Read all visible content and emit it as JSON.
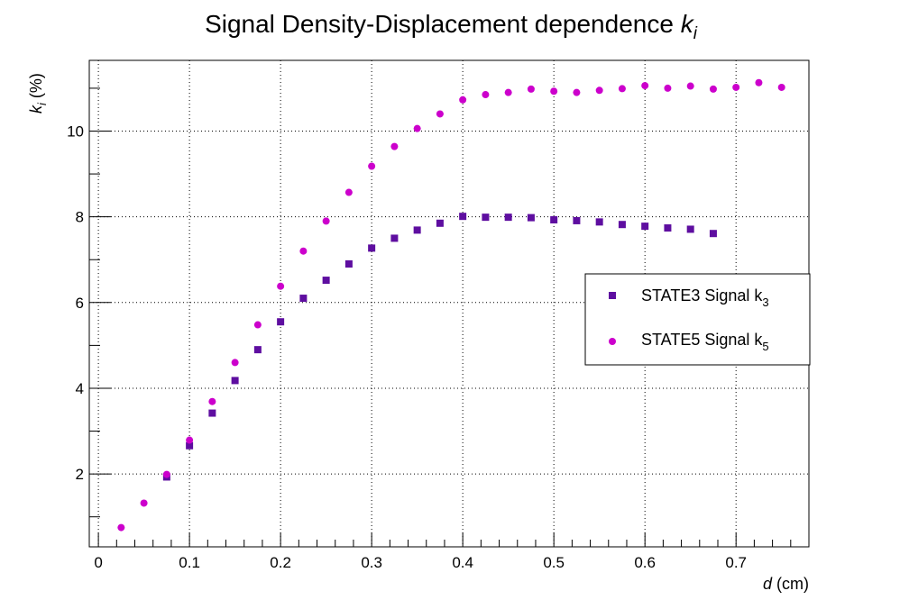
{
  "chart_data": {
    "type": "scatter",
    "title": "Signal Density-Displacement dependence",
    "title_symbol": "k",
    "title_symbol_sub": "i",
    "xlabel_symbol": "d",
    "xlabel": "(cm)",
    "ylabel_symbol": "k",
    "ylabel_symbol_sub": "i",
    "ylabel": "(%)",
    "xlim": [
      -0.01,
      0.78
    ],
    "ylim": [
      0.3,
      11.65
    ],
    "x_ticks": [
      "0",
      "0.1",
      "0.2",
      "0.3",
      "0.4",
      "0.5",
      "0.6",
      "0.7"
    ],
    "y_ticks": [
      "2",
      "4",
      "6",
      "8",
      "10"
    ],
    "grid": true,
    "legend_position": "center-right",
    "series": [
      {
        "name": "STATE3 Signal k",
        "name_sub": "3",
        "marker": "square",
        "color": "#5e0ea0",
        "x": [
          0.075,
          0.1,
          0.125,
          0.15,
          0.175,
          0.2,
          0.225,
          0.25,
          0.275,
          0.3,
          0.325,
          0.35,
          0.375,
          0.4,
          0.425,
          0.45,
          0.475,
          0.5,
          0.525,
          0.55,
          0.575,
          0.6,
          0.625,
          0.65,
          0.675
        ],
        "y": [
          1.93,
          2.66,
          3.42,
          4.18,
          4.9,
          5.55,
          6.1,
          6.52,
          6.9,
          7.27,
          7.5,
          7.69,
          7.85,
          8.01,
          7.99,
          7.99,
          7.98,
          7.93,
          7.91,
          7.88,
          7.82,
          7.78,
          7.74,
          7.71,
          7.61
        ]
      },
      {
        "name": "STATE5 Signal k",
        "name_sub": "5",
        "marker": "circle",
        "color": "#cc00cc",
        "x": [
          0.025,
          0.05,
          0.075,
          0.1,
          0.125,
          0.15,
          0.175,
          0.2,
          0.225,
          0.25,
          0.275,
          0.3,
          0.325,
          0.35,
          0.375,
          0.4,
          0.425,
          0.45,
          0.475,
          0.5,
          0.525,
          0.55,
          0.575,
          0.6,
          0.625,
          0.65,
          0.675,
          0.7,
          0.725,
          0.75
        ],
        "y": [
          0.75,
          1.32,
          1.99,
          2.79,
          3.69,
          4.6,
          5.48,
          6.38,
          7.2,
          7.9,
          8.57,
          9.18,
          9.64,
          10.06,
          10.4,
          10.73,
          10.85,
          10.9,
          10.98,
          10.93,
          10.9,
          10.95,
          10.99,
          11.06,
          11.0,
          11.05,
          10.98,
          11.02,
          11.13,
          11.02
        ]
      }
    ]
  }
}
